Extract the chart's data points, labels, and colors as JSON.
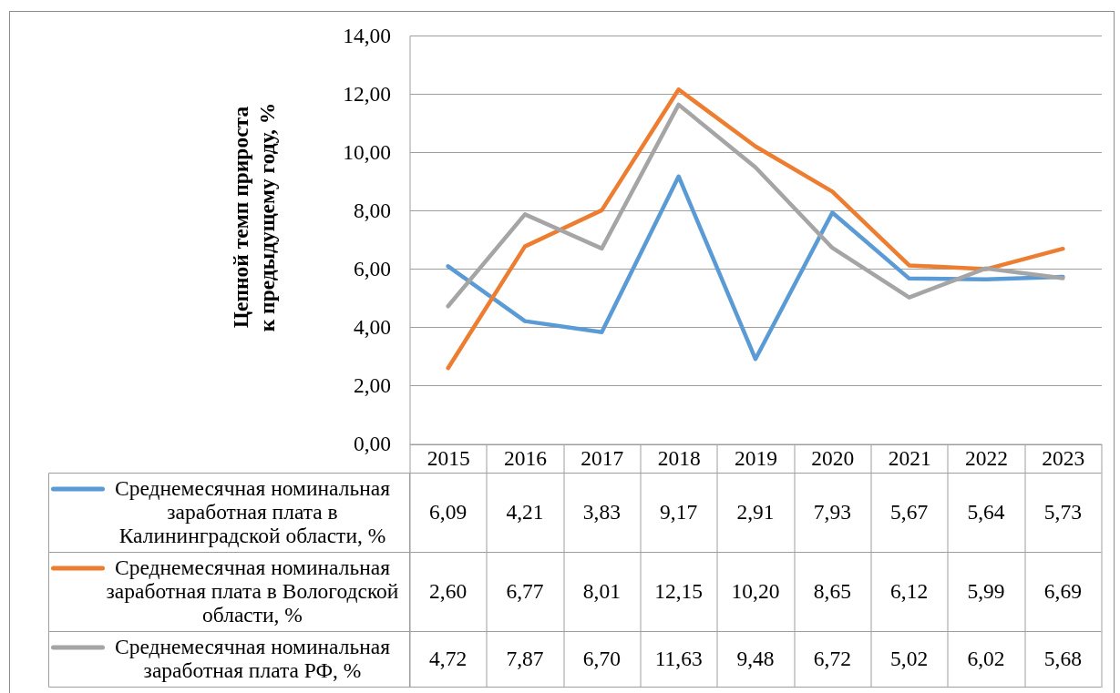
{
  "chart_data": {
    "type": "line",
    "ylabel": "Цепной темп прироста\nк предыдущему году, %",
    "categories": [
      "2015",
      "2016",
      "2017",
      "2018",
      "2019",
      "2020",
      "2021",
      "2022",
      "2023"
    ],
    "series": [
      {
        "name": "Среднемесячная номинальная заработная плата в Калининградской области, %",
        "color": "#5b9bd5",
        "values": [
          6.09,
          4.21,
          3.83,
          9.17,
          2.91,
          7.93,
          5.67,
          5.64,
          5.73
        ],
        "value_labels": [
          "6,09",
          "4,21",
          "3,83",
          "9,17",
          "2,91",
          "7,93",
          "5,67",
          "5,64",
          "5,73"
        ]
      },
      {
        "name": "Среднемесячная номинальная заработная плата в Вологодской области, %",
        "color": "#ed7d31",
        "values": [
          2.6,
          6.77,
          8.01,
          12.15,
          10.2,
          8.65,
          6.12,
          5.99,
          6.69
        ],
        "value_labels": [
          "2,60",
          "6,77",
          "8,01",
          "12,15",
          "10,20",
          "8,65",
          "6,12",
          "5,99",
          "6,69"
        ]
      },
      {
        "name": "Среднемесячная номинальная заработная плата РФ, %",
        "color": "#a5a5a5",
        "values": [
          4.72,
          7.87,
          6.7,
          11.63,
          9.48,
          6.72,
          5.02,
          6.02,
          5.68
        ],
        "value_labels": [
          "4,72",
          "7,87",
          "6,70",
          "11,63",
          "9,48",
          "6,72",
          "5,02",
          "6,02",
          "5,68"
        ]
      }
    ],
    "ylim": [
      0,
      14
    ],
    "yticks": [
      {
        "value": 0,
        "label": "0,00"
      },
      {
        "value": 2,
        "label": "2,00"
      },
      {
        "value": 4,
        "label": "4,00"
      },
      {
        "value": 6,
        "label": "6,00"
      },
      {
        "value": 8,
        "label": "8,00"
      },
      {
        "value": 10,
        "label": "10,00"
      },
      {
        "value": 12,
        "label": "12,00"
      },
      {
        "value": 14,
        "label": "14,00"
      }
    ],
    "grid": "y",
    "legend": "bottom left"
  }
}
